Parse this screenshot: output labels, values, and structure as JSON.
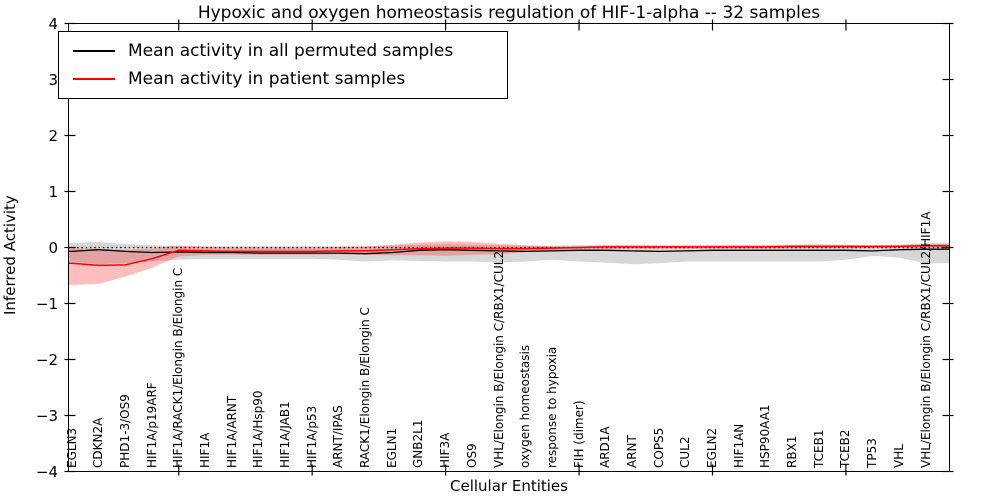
{
  "chart_data": {
    "type": "line",
    "title": "Hypoxic and oxygen homeostasis regulation of HIF-1-alpha -- 32 samples",
    "xlabel": "Cellular Entities",
    "ylabel": "Inferred Activity",
    "ylim": [
      -4,
      4
    ],
    "yticks": [
      4,
      3,
      2,
      1,
      0,
      -1,
      -2,
      -3,
      -4
    ],
    "x_major_tick_indices": [
      4,
      9,
      14,
      19,
      24,
      29
    ],
    "grid": false,
    "legend_position": "upper left",
    "zero_line": {
      "y": 0,
      "style": "dotted",
      "color": "#000000"
    },
    "categories": [
      "EGLN3",
      "CDKN2A",
      "PHD1-3/OS9",
      "HIF1A/p19ARF",
      "HIF1A/RACK1/Elongin B/Elongin C",
      "HIF1A",
      "HIF1A/ARNT",
      "HIF1A/Hsp90",
      "HIF1A/JAB1",
      "HIF1A/p53",
      "ARNT/IPAS",
      "RACK1/Elongin B/Elongin C",
      "EGLN1",
      "GNB2L1",
      "HIF3A",
      "OS9",
      "VHL/Elongin B/Elongin C/RBX1/CUL2",
      "oxygen homeostasis",
      "response to hypoxia",
      "FIH (dimer)",
      "ARD1A",
      "ARNT",
      "COPS5",
      "CUL2",
      "EGLN2",
      "HIF1AN",
      "HSP90AA1",
      "RBX1",
      "TCEB1",
      "TCEB2",
      "TP53",
      "VHL",
      "VHL/Elongin B/Elongin C/RBX1/CUL2/HIF1A"
    ],
    "series": [
      {
        "name": "Mean activity in all permuted samples",
        "line_color": "#000000",
        "band_color": "rgba(110,110,110,0.28)",
        "values": [
          -0.07,
          -0.04,
          -0.07,
          -0.09,
          -0.08,
          -0.09,
          -0.09,
          -0.1,
          -0.1,
          -0.1,
          -0.1,
          -0.11,
          -0.09,
          -0.05,
          -0.04,
          -0.05,
          -0.06,
          -0.07,
          -0.06,
          -0.05,
          -0.05,
          -0.06,
          -0.07,
          -0.06,
          -0.05,
          -0.05,
          -0.05,
          -0.05,
          -0.05,
          -0.05,
          -0.06,
          -0.04,
          -0.03
        ],
        "band_high": [
          0.08,
          0.1,
          0.06,
          0.04,
          0.02,
          0.02,
          0.02,
          0.02,
          0.02,
          0.02,
          0.02,
          0.02,
          0.03,
          0.05,
          0.06,
          0.05,
          0.04,
          0.03,
          0.03,
          0.04,
          0.05,
          0.05,
          0.04,
          0.04,
          0.05,
          0.05,
          0.05,
          0.05,
          0.06,
          0.05,
          0.03,
          0.04,
          0.08
        ],
        "band_low": [
          -0.25,
          -0.3,
          -0.28,
          -0.25,
          -0.22,
          -0.2,
          -0.2,
          -0.2,
          -0.2,
          -0.2,
          -0.22,
          -0.25,
          -0.23,
          -0.24,
          -0.25,
          -0.25,
          -0.27,
          -0.25,
          -0.22,
          -0.25,
          -0.27,
          -0.3,
          -0.28,
          -0.25,
          -0.25,
          -0.25,
          -0.25,
          -0.25,
          -0.25,
          -0.22,
          -0.15,
          -0.18,
          -0.28
        ]
      },
      {
        "name": "Mean activity in patient samples",
        "line_color": "#ff0000",
        "band_color": "rgba(255,40,40,0.30)",
        "values": [
          -0.28,
          -0.32,
          -0.31,
          -0.2,
          -0.05,
          -0.06,
          -0.07,
          -0.07,
          -0.07,
          -0.07,
          -0.06,
          -0.06,
          -0.04,
          -0.02,
          -0.01,
          -0.01,
          -0.02,
          -0.02,
          -0.01,
          0.0,
          0.01,
          0.01,
          0.01,
          0.01,
          0.01,
          0.01,
          0.01,
          0.02,
          0.02,
          0.02,
          0.02,
          0.02,
          0.03
        ],
        "band_high": [
          -0.01,
          -0.02,
          -0.04,
          -0.02,
          0.04,
          0.01,
          0.0,
          0.0,
          0.0,
          0.0,
          0.01,
          0.02,
          0.05,
          0.09,
          0.11,
          0.1,
          0.07,
          0.04,
          0.02,
          0.02,
          0.03,
          0.03,
          0.03,
          0.03,
          0.03,
          0.03,
          0.03,
          0.04,
          0.04,
          0.04,
          0.04,
          0.05,
          0.06
        ],
        "band_low": [
          -0.67,
          -0.65,
          -0.52,
          -0.36,
          -0.16,
          -0.13,
          -0.13,
          -0.13,
          -0.13,
          -0.13,
          -0.12,
          -0.13,
          -0.14,
          -0.14,
          -0.15,
          -0.13,
          -0.12,
          -0.08,
          -0.05,
          -0.04,
          -0.03,
          -0.02,
          -0.02,
          -0.02,
          -0.02,
          -0.02,
          -0.02,
          -0.01,
          -0.01,
          -0.01,
          -0.01,
          0.0,
          0.0
        ]
      }
    ]
  }
}
